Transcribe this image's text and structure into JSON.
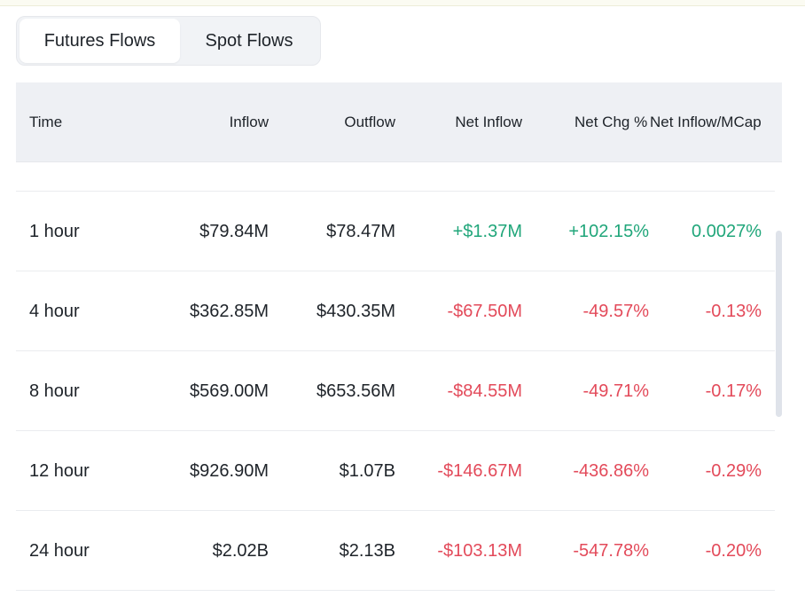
{
  "tabs": [
    {
      "label": "Futures Flows",
      "active": true
    },
    {
      "label": "Spot Flows",
      "active": false
    }
  ],
  "table": {
    "headers": [
      "Time",
      "Inflow",
      "Outflow",
      "Net Inflow",
      "Net Chg %",
      "Net Inflow/MCap"
    ],
    "rows": [
      {
        "time": "1 hour",
        "inflow": "$79.84M",
        "outflow": "$78.47M",
        "net_inflow": "+$1.37M",
        "net_chg": "+102.15%",
        "net_mcap": "0.0027%",
        "sign": "pos"
      },
      {
        "time": "4 hour",
        "inflow": "$362.85M",
        "outflow": "$430.35M",
        "net_inflow": "-$67.50M",
        "net_chg": "-49.57%",
        "net_mcap": "-0.13%",
        "sign": "neg"
      },
      {
        "time": "8 hour",
        "inflow": "$569.00M",
        "outflow": "$653.56M",
        "net_inflow": "-$84.55M",
        "net_chg": "-49.71%",
        "net_mcap": "-0.17%",
        "sign": "neg"
      },
      {
        "time": "12 hour",
        "inflow": "$926.90M",
        "outflow": "$1.07B",
        "net_inflow": "-$146.67M",
        "net_chg": "-436.86%",
        "net_mcap": "-0.29%",
        "sign": "neg"
      },
      {
        "time": "24 hour",
        "inflow": "$2.02B",
        "outflow": "$2.13B",
        "net_inflow": "-$103.13M",
        "net_chg": "-547.78%",
        "net_mcap": "-0.20%",
        "sign": "neg"
      }
    ]
  },
  "colors": {
    "positive": "#20a67a",
    "negative": "#e34a5a",
    "text": "#1e2329",
    "header_bg": "#eef0f4"
  }
}
